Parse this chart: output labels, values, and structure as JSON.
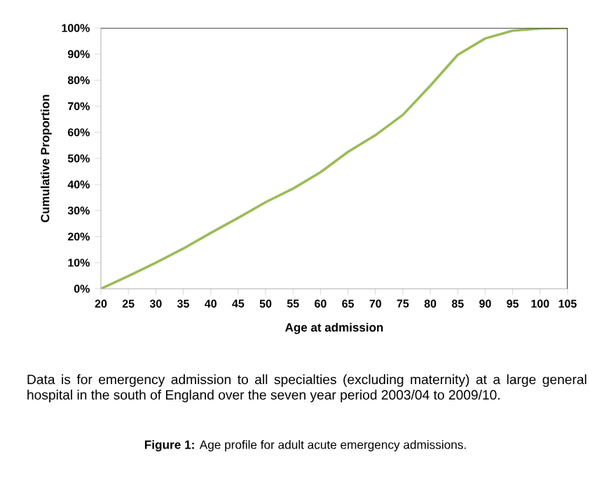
{
  "chart_data": {
    "type": "line",
    "xlabel": "Age at admission",
    "ylabel": "Cumulative Proportion",
    "x": [
      20,
      25,
      30,
      35,
      40,
      45,
      50,
      55,
      60,
      65,
      70,
      75,
      80,
      85,
      90,
      95,
      100,
      105
    ],
    "series": [
      {
        "color": "#9bbb59",
        "values": [
          0,
          4.9,
          10,
          15.4,
          21.4,
          27.2,
          33.2,
          38.4,
          44.7,
          52.5,
          58.9,
          66.7,
          77.9,
          89.7,
          96,
          99,
          99.8,
          100
        ]
      }
    ],
    "xlim": [
      20,
      105
    ],
    "ylim": [
      0,
      100
    ],
    "xticks": [
      20,
      25,
      30,
      35,
      40,
      45,
      50,
      55,
      60,
      65,
      70,
      75,
      80,
      85,
      90,
      95,
      100,
      105
    ],
    "yticks": [
      {
        "value": 0,
        "label": "0%"
      },
      {
        "value": 10,
        "label": "10%"
      },
      {
        "value": 20,
        "label": "20%"
      },
      {
        "value": 30,
        "label": "30%"
      },
      {
        "value": 40,
        "label": "40%"
      },
      {
        "value": 50,
        "label": "50%"
      },
      {
        "value": 60,
        "label": "60%"
      },
      {
        "value": 70,
        "label": "70%"
      },
      {
        "value": 80,
        "label": "80%"
      },
      {
        "value": 90,
        "label": "90%"
      },
      {
        "value": 100,
        "label": "100%"
      }
    ],
    "grid": false,
    "marker": "none",
    "line_style": "solid",
    "annotations": [
      "Data is for emergency admission to all specialties (excluding maternity) at a large general hospital in the south of England over the seven year period 2003/04 to 2009/10.",
      "**Figure 1:** Age profile for adult acute emergency admissions."
    ]
  }
}
